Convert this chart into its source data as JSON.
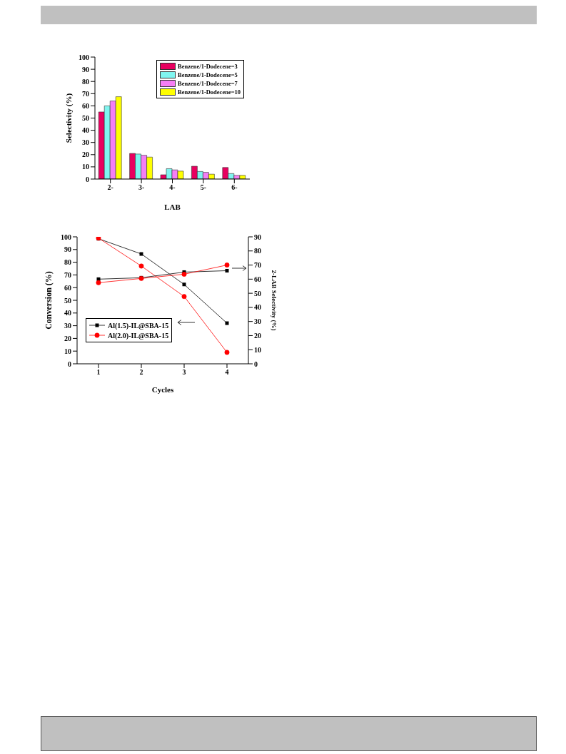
{
  "chart_data": [
    {
      "type": "bar",
      "ylabel": "Selectivity (%)",
      "xlabel": "LAB",
      "categories": [
        "2-",
        "3-",
        "4-",
        "5-",
        "6-"
      ],
      "series": [
        {
          "name": "Benzene/1-Dodecene=3",
          "color": "#e8005f",
          "values": [
            55,
            21,
            3.5,
            10.5,
            9.5
          ]
        },
        {
          "name": "Benzene/1-Dodecene=5",
          "color": "#7ff5f0",
          "values": [
            60,
            20.5,
            8.5,
            6.2,
            4.5
          ]
        },
        {
          "name": "Benzene/1-Dodecene=7",
          "color": "#f57ef5",
          "values": [
            64,
            19.5,
            7.5,
            5.5,
            3
          ]
        },
        {
          "name": "Benzene/1-Dodecene=10",
          "color": "#ffff00",
          "values": [
            67.5,
            18,
            6.5,
            4,
            3
          ]
        }
      ],
      "ylim": [
        0,
        100
      ],
      "yticks": [
        0,
        10,
        20,
        30,
        40,
        50,
        60,
        70,
        80,
        90,
        100
      ],
      "legend": "top right"
    },
    {
      "type": "line",
      "xlabel": "Cycles",
      "ylabel": "Conversion (%)",
      "y2label": "2-LAB Selectivity (%)",
      "x": [
        1,
        2,
        3,
        4
      ],
      "series": [
        {
          "name": "Al(1.5)-IL@SBA-15",
          "color": "#000000",
          "marker": "square",
          "values": [
            98.5,
            86.5,
            62.5,
            32
          ]
        },
        {
          "name": "Al(2.0)-IL@SBA-15",
          "color": "#ff0000",
          "marker": "circle",
          "values": [
            99,
            77,
            53,
            9
          ]
        },
        {
          "color": "#000000",
          "marker": "square",
          "axis": "y2",
          "values": [
            60,
            61,
            65,
            66
          ]
        },
        {
          "color": "#ff0000",
          "marker": "circle",
          "axis": "y2",
          "values": [
            57.5,
            60.5,
            63.5,
            70
          ]
        }
      ],
      "xlim": [
        0.5,
        4.5
      ],
      "xticks": [
        1,
        2,
        3,
        4
      ],
      "ylim": [
        0,
        100
      ],
      "yticks": [
        0,
        10,
        20,
        30,
        40,
        50,
        60,
        70,
        80,
        90,
        100
      ],
      "y2lim": [
        0,
        90
      ],
      "y2ticks": [
        0,
        10,
        20,
        30,
        40,
        50,
        60,
        70,
        80,
        90
      ],
      "legend": "bottom left"
    }
  ]
}
